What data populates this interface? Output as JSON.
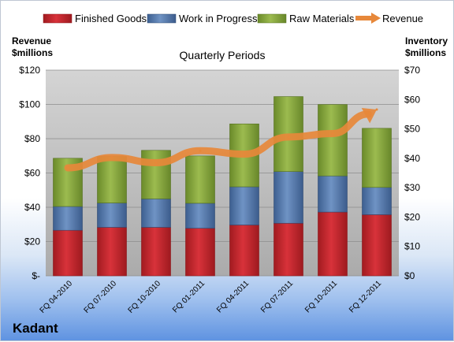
{
  "chart_data": {
    "type": "bar",
    "title": "Quarterly Periods",
    "company": "Kadant",
    "left_axis_label": [
      "Revenue",
      "$millions"
    ],
    "right_axis_label": [
      "Inventory",
      "$millions"
    ],
    "categories": [
      "FQ 04-2010",
      "FQ 07-2010",
      "FQ 10-2010",
      "FQ 01-2011",
      "FQ 04-2011",
      "FQ 07-2011",
      "FQ 10-2011",
      "FQ 12-2011"
    ],
    "left_ticks": [
      "$-",
      "$20",
      "$40",
      "$60",
      "$80",
      "$100",
      "$120"
    ],
    "right_ticks": [
      "$0",
      "$10",
      "$20",
      "$30",
      "$40",
      "$50",
      "$60",
      "$70"
    ],
    "ylim_left": [
      0,
      120
    ],
    "ylim_right": [
      0,
      70
    ],
    "legend_position": "top",
    "stacked_series_axis": "right",
    "series": [
      {
        "name": "Finished Goods",
        "color": "#c8242a",
        "values": [
          15.5,
          16.5,
          16.5,
          16.2,
          17.3,
          17.9,
          21.7,
          20.8
        ]
      },
      {
        "name": "Work in Progress",
        "color": "#4f76ad",
        "values": [
          8.1,
          8.3,
          9.7,
          8.5,
          13.0,
          17.6,
          12.3,
          9.3
        ]
      },
      {
        "name": "Raw Materials",
        "color": "#87a83c",
        "values": [
          16.4,
          15.8,
          16.5,
          16.1,
          21.4,
          25.5,
          24.3,
          20.1
        ]
      }
    ],
    "line_series": {
      "name": "Revenue",
      "axis": "left",
      "color": "#e7883a",
      "values": [
        63,
        69,
        66,
        73,
        71,
        81,
        83,
        97
      ]
    }
  }
}
